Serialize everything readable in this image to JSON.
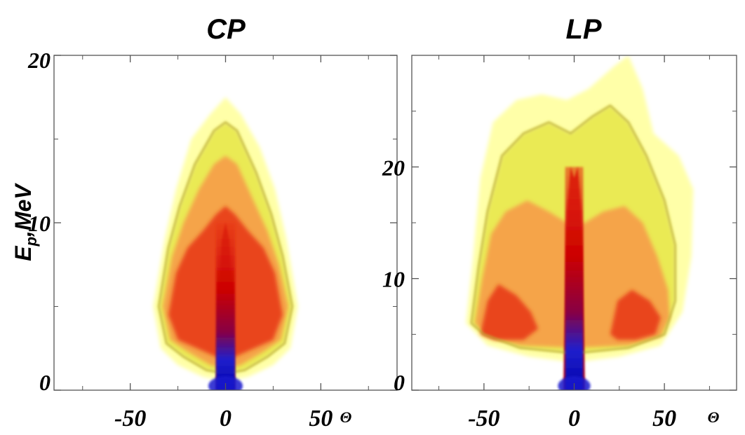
{
  "chart_data": [
    {
      "type": "heatmap",
      "title": "CP",
      "ylabel_main": "E",
      "ylabel_sub": "p",
      "ylabel_rest": ",MeV",
      "x_unit_symbol": "Θ",
      "xlim": [
        -90,
        90
      ],
      "ylim": [
        0,
        20
      ],
      "xticks": [
        -50,
        0,
        50
      ],
      "xtick_labels": [
        "-50",
        "0",
        "50"
      ],
      "yticks": [
        0,
        10,
        20
      ],
      "ytick_labels": [
        "0",
        "10",
        "20"
      ],
      "minor_xticks": [
        -75,
        -25,
        25,
        75
      ],
      "minor_yticks": [
        5,
        15
      ],
      "colormap": [
        "#ffff99",
        "#e8e84a",
        "#b8a832",
        "#f5a04a",
        "#e83a1a",
        "#cc0000",
        "#880044",
        "#2020cc",
        "#0000aa"
      ],
      "density_regions": [
        {
          "level": "faint",
          "outline_theta_e": [
            [
              -38,
              5
            ],
            [
              -32,
              9
            ],
            [
              -26,
              12
            ],
            [
              -18,
              15
            ],
            [
              -8,
              16.5
            ],
            [
              0,
              17.5
            ],
            [
              8,
              16.5
            ],
            [
              18,
              14.5
            ],
            [
              26,
              12
            ],
            [
              32,
              9
            ],
            [
              38,
              5
            ],
            [
              34,
              2.5
            ],
            [
              25,
              1.5
            ],
            [
              12,
              0.8
            ],
            [
              0,
              0.5
            ],
            [
              -12,
              0.8
            ],
            [
              -25,
              1.5
            ],
            [
              -34,
              2.5
            ]
          ]
        },
        {
          "level": "low",
          "outline_theta_e": [
            [
              -35,
              5
            ],
            [
              -30,
              8.5
            ],
            [
              -24,
              11
            ],
            [
              -16,
              13.5
            ],
            [
              -6,
              15.5
            ],
            [
              0,
              16
            ],
            [
              6,
              15.5
            ],
            [
              16,
              13
            ],
            [
              24,
              10.5
            ],
            [
              30,
              8
            ],
            [
              35,
              5
            ],
            [
              31,
              2.8
            ],
            [
              22,
              2
            ],
            [
              10,
              1.2
            ],
            [
              0,
              1
            ],
            [
              -10,
              1.2
            ],
            [
              -22,
              2
            ],
            [
              -31,
              2.8
            ]
          ]
        },
        {
          "level": "medium",
          "outline_theta_e": [
            [
              -33,
              5
            ],
            [
              -28,
              8
            ],
            [
              -22,
              10
            ],
            [
              -14,
              12
            ],
            [
              -6,
              13.5
            ],
            [
              0,
              14
            ],
            [
              6,
              13.5
            ],
            [
              14,
              11.5
            ],
            [
              22,
              9.5
            ],
            [
              28,
              7.5
            ],
            [
              33,
              5
            ],
            [
              29,
              3
            ],
            [
              20,
              2.3
            ],
            [
              8,
              1.5
            ],
            [
              0,
              1.3
            ],
            [
              -8,
              1.5
            ],
            [
              -20,
              2.3
            ],
            [
              -29,
              3
            ]
          ]
        },
        {
          "level": "high",
          "outline_theta_e": [
            [
              -30,
              4.5
            ],
            [
              -26,
              7
            ],
            [
              -20,
              8.5
            ],
            [
              -12,
              9.5
            ],
            [
              -5,
              10.5
            ],
            [
              0,
              11
            ],
            [
              5,
              10.5
            ],
            [
              12,
              9.5
            ],
            [
              20,
              8.5
            ],
            [
              26,
              7
            ],
            [
              30,
              4.5
            ],
            [
              25,
              3
            ],
            [
              15,
              2.5
            ],
            [
              5,
              2
            ],
            [
              0,
              1.8
            ],
            [
              -5,
              2
            ],
            [
              -15,
              2.5
            ],
            [
              -25,
              3
            ]
          ]
        },
        {
          "level": "peak",
          "outline_theta_e": [
            [
              -5,
              0
            ],
            [
              -4,
              5
            ],
            [
              -2,
              9
            ],
            [
              0,
              10
            ],
            [
              2,
              9
            ],
            [
              4,
              5
            ],
            [
              5,
              0
            ]
          ]
        }
      ]
    },
    {
      "type": "heatmap",
      "title": "LP",
      "x_unit_symbol": "Θ",
      "xlim": [
        -90,
        90
      ],
      "ylim": [
        0,
        30
      ],
      "xticks": [
        -50,
        0,
        50
      ],
      "xtick_labels": [
        "-50",
        "0",
        "50"
      ],
      "yticks": [
        0,
        10,
        20
      ],
      "ytick_labels": [
        "0",
        "10",
        "20"
      ],
      "minor_xticks": [
        -75,
        -25,
        25,
        75
      ],
      "minor_yticks": [
        5,
        15,
        25
      ],
      "colormap": [
        "#ffff99",
        "#e8e84a",
        "#b8a832",
        "#f5a04a",
        "#e83a1a",
        "#cc0000",
        "#880044",
        "#2020cc",
        "#0000aa"
      ],
      "density_regions": [
        {
          "level": "faint",
          "outline_theta_e": [
            [
              -60,
              6
            ],
            [
              -56,
              12
            ],
            [
              -52,
              19
            ],
            [
              -45,
              24
            ],
            [
              -32,
              26
            ],
            [
              -18,
              26.5
            ],
            [
              -4,
              26
            ],
            [
              8,
              27
            ],
            [
              22,
              29
            ],
            [
              30,
              30
            ],
            [
              38,
              27
            ],
            [
              44,
              23
            ],
            [
              58,
              21
            ],
            [
              66,
              18
            ],
            [
              65,
              12
            ],
            [
              60,
              7
            ],
            [
              48,
              4
            ],
            [
              25,
              3
            ],
            [
              0,
              2.5
            ],
            [
              -25,
              3
            ],
            [
              -48,
              4
            ]
          ]
        },
        {
          "level": "low",
          "outline_theta_e": [
            [
              -57,
              6
            ],
            [
              -53,
              11
            ],
            [
              -48,
              16
            ],
            [
              -40,
              21
            ],
            [
              -28,
              23
            ],
            [
              -14,
              24
            ],
            [
              -2,
              23
            ],
            [
              10,
              24.5
            ],
            [
              20,
              25.5
            ],
            [
              30,
              24
            ],
            [
              40,
              21
            ],
            [
              50,
              17
            ],
            [
              56,
              13
            ],
            [
              56,
              8
            ],
            [
              50,
              5
            ],
            [
              30,
              3.8
            ],
            [
              0,
              3.3
            ],
            [
              -30,
              3.8
            ],
            [
              -50,
              5
            ]
          ]
        },
        {
          "level": "medium",
          "outline_theta_e": [
            [
              -55,
              6
            ],
            [
              -51,
              10
            ],
            [
              -46,
              14
            ],
            [
              -38,
              16
            ],
            [
              -26,
              17
            ],
            [
              -14,
              16
            ],
            [
              -4,
              15
            ],
            [
              6,
              15
            ],
            [
              16,
              16
            ],
            [
              28,
              16.5
            ],
            [
              38,
              15
            ],
            [
              46,
              12
            ],
            [
              52,
              9
            ],
            [
              53,
              6.5
            ],
            [
              48,
              4.8
            ],
            [
              30,
              4
            ],
            [
              0,
              3.8
            ],
            [
              -30,
              4
            ],
            [
              -48,
              4.8
            ]
          ]
        },
        {
          "level": "high",
          "outline_theta_e": [
            [
              -52,
              5
            ],
            [
              -48,
              8
            ],
            [
              -42,
              9.5
            ],
            [
              -32,
              8.5
            ],
            [
              -24,
              7
            ],
            [
              -20,
              5.5
            ],
            [
              -28,
              4.5
            ],
            [
              -44,
              4.5
            ]
          ]
        },
        {
          "level": "high",
          "outline_theta_e": [
            [
              20,
              5
            ],
            [
              24,
              8
            ],
            [
              32,
              9
            ],
            [
              42,
              8
            ],
            [
              48,
              6.5
            ],
            [
              45,
              5
            ],
            [
              34,
              4.5
            ],
            [
              24,
              4.5
            ]
          ]
        },
        {
          "level": "peak",
          "outline_theta_e": [
            [
              -6,
              0
            ],
            [
              -5,
              8
            ],
            [
              -4,
              16
            ],
            [
              -2,
              20
            ],
            [
              0,
              19
            ],
            [
              2,
              20
            ],
            [
              4,
              16
            ],
            [
              5,
              8
            ],
            [
              6,
              0
            ]
          ]
        }
      ]
    }
  ]
}
